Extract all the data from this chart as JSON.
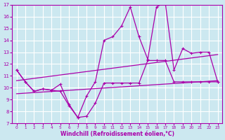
{
  "background_color": "#cce8f0",
  "grid_color": "#ffffff",
  "line_color": "#aa00aa",
  "xlabel": "Windchill (Refroidissement éolien,°C)",
  "xlim": [
    -0.5,
    23.5
  ],
  "ylim": [
    7,
    17
  ],
  "xticks": [
    0,
    1,
    2,
    3,
    4,
    5,
    6,
    7,
    8,
    9,
    10,
    11,
    12,
    13,
    14,
    15,
    16,
    17,
    18,
    19,
    20,
    21,
    22,
    23
  ],
  "yticks": [
    7,
    8,
    9,
    10,
    11,
    12,
    13,
    14,
    15,
    16,
    17
  ],
  "zigzag_x": [
    0,
    1,
    2,
    3,
    4,
    5,
    6,
    7,
    8,
    9,
    10,
    11,
    12,
    13,
    14,
    15,
    16,
    17,
    18,
    19,
    20,
    21,
    22,
    23
  ],
  "zigzag_y": [
    11.5,
    10.5,
    9.7,
    9.9,
    9.8,
    10.3,
    8.6,
    7.5,
    9.3,
    10.5,
    14.0,
    14.3,
    15.2,
    16.8,
    14.3,
    12.4,
    16.8,
    17.2,
    11.5,
    13.3,
    12.9,
    13.0,
    13.0,
    10.5
  ],
  "actual_x": [
    0,
    1,
    2,
    3,
    4,
    5,
    6,
    7,
    8,
    9,
    10,
    11,
    12,
    13,
    14,
    15,
    16,
    17,
    18,
    19,
    20,
    21,
    22,
    23
  ],
  "actual_y": [
    11.5,
    10.5,
    9.7,
    9.9,
    9.8,
    9.7,
    8.5,
    7.5,
    7.6,
    8.7,
    10.4,
    10.4,
    10.4,
    10.4,
    10.4,
    12.3,
    12.3,
    12.3,
    10.5,
    10.5,
    10.5,
    10.5,
    10.5,
    10.5
  ],
  "trend1_x": [
    0,
    23
  ],
  "trend1_y": [
    10.6,
    12.8
  ],
  "trend2_x": [
    0,
    23
  ],
  "trend2_y": [
    9.5,
    10.6
  ]
}
